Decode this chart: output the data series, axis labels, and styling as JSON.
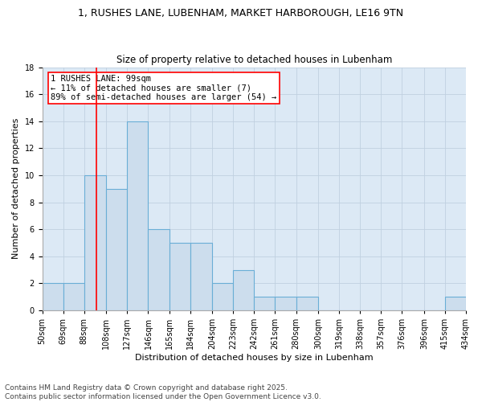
{
  "title_line1": "1, RUSHES LANE, LUBENHAM, MARKET HARBOROUGH, LE16 9TN",
  "title_line2": "Size of property relative to detached houses in Lubenham",
  "xlabel": "Distribution of detached houses by size in Lubenham",
  "ylabel": "Number of detached properties",
  "bin_labels": [
    "50sqm",
    "69sqm",
    "88sqm",
    "108sqm",
    "127sqm",
    "146sqm",
    "165sqm",
    "184sqm",
    "204sqm",
    "223sqm",
    "242sqm",
    "261sqm",
    "280sqm",
    "300sqm",
    "319sqm",
    "338sqm",
    "357sqm",
    "376sqm",
    "396sqm",
    "415sqm",
    "434sqm"
  ],
  "bar_heights": [
    2,
    2,
    10,
    9,
    14,
    6,
    5,
    5,
    2,
    3,
    1,
    1,
    1,
    0,
    0,
    0,
    0,
    0,
    0,
    1
  ],
  "bar_color": "#ccdded",
  "bar_edge_color": "#6aaed6",
  "red_line_x": 99,
  "bin_edges": [
    50,
    69,
    88,
    108,
    127,
    146,
    165,
    184,
    204,
    223,
    242,
    261,
    280,
    300,
    319,
    338,
    357,
    376,
    396,
    415,
    434
  ],
  "annotation_text_line1": "1 RUSHES LANE: 99sqm",
  "annotation_text_line2": "← 11% of detached houses are smaller (7)",
  "annotation_text_line3": "89% of semi-detached houses are larger (54) →",
  "ylim": [
    0,
    18
  ],
  "yticks": [
    0,
    2,
    4,
    6,
    8,
    10,
    12,
    14,
    16,
    18
  ],
  "footnote_line1": "Contains HM Land Registry data © Crown copyright and database right 2025.",
  "footnote_line2": "Contains public sector information licensed under the Open Government Licence v3.0.",
  "bg_color": "#ffffff",
  "plot_bg_color": "#dce9f5",
  "grid_color": "#c0d0e0",
  "title_fontsize": 9,
  "subtitle_fontsize": 8.5,
  "axis_label_fontsize": 8,
  "tick_fontsize": 7,
  "annotation_fontsize": 7.5,
  "footnote_fontsize": 6.5
}
